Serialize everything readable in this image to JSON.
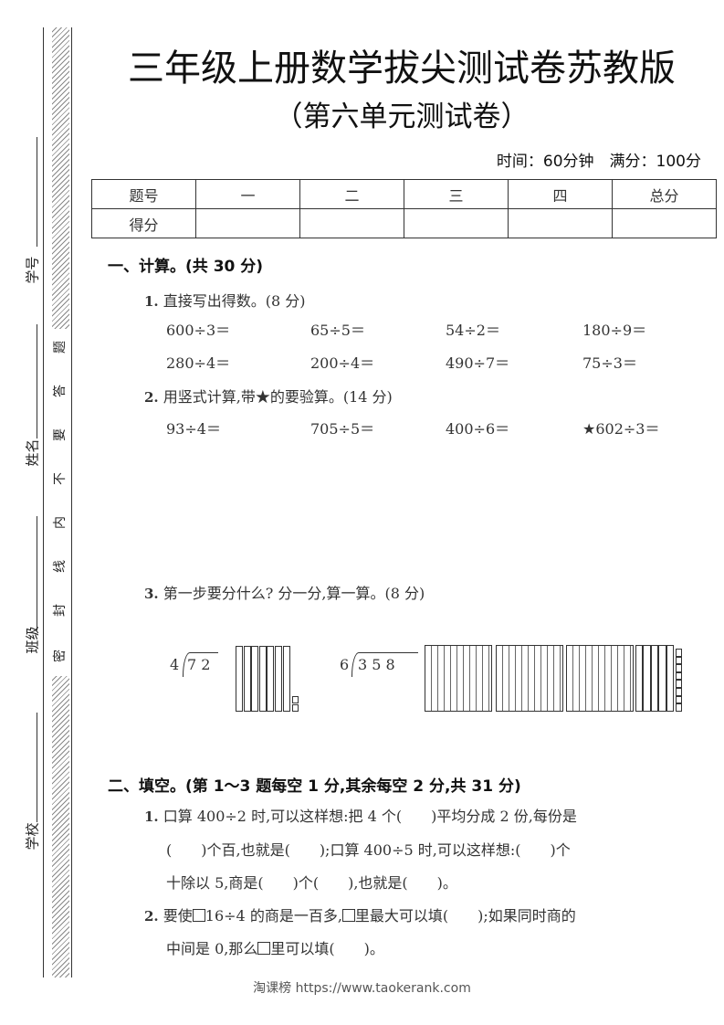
{
  "title": "三年级上册数学拔尖测试卷苏教版",
  "subtitle": "（第六单元测试卷）",
  "meta": "时间：60分钟　满分：100分",
  "sidebar": {
    "student_no": "学号",
    "name": "姓名",
    "class": "班级",
    "school": "学校",
    "seal": [
      "密",
      "封",
      "线",
      "内",
      "不",
      "要",
      "答",
      "题"
    ]
  },
  "score_table": {
    "headers": [
      "题号",
      "一",
      "二",
      "三",
      "四",
      "总分"
    ],
    "row_label": "得分"
  },
  "section1": {
    "heading": "一、计算。(共 30 分)",
    "q1": {
      "num": "1.",
      "text": "直接写出得数。(8 分)",
      "items": [
        "600÷3＝",
        "65÷5＝",
        "54÷2＝",
        "180÷9＝",
        "280÷4＝",
        "200÷4＝",
        "490÷7＝",
        "75÷3＝"
      ]
    },
    "q2": {
      "num": "2.",
      "text": "用竖式计算,带★的要验算。(14 分)",
      "items": [
        "93÷4＝",
        "705÷5＝",
        "400÷6＝",
        "★602÷3＝"
      ]
    },
    "q3": {
      "num": "3.",
      "text": "第一步要分什么? 分一分,算一算。(8 分)",
      "div1": {
        "divisor": "4",
        "dividend": "7 2",
        "tens": 7,
        "ones": 2
      },
      "div2": {
        "divisor": "6",
        "dividend": "3 5 8",
        "hundreds": 3,
        "tens": 5,
        "ones": 8
      }
    }
  },
  "section2": {
    "heading": "二、填空。(第 1～3 题每空 1 分,其余每空 2 分,共 31 分)",
    "q1": {
      "num": "1.",
      "lines": [
        "口算 400÷2 时,可以这样想:把 4 个(　　)平均分成 2 份,每份是",
        "(　　)个百,也就是(　　);口算 400÷5 时,可以这样想:(　　)个",
        "十除以 5,商是(　　)个(　　),也就是(　　)。"
      ]
    },
    "q2": {
      "num": "2.",
      "l1a": "要使",
      "l1b": "16÷4 的商是一百多,",
      "l1c": "里最大可以填(　　);如果同时商的",
      "l2a": "中间是 0,那么",
      "l2b": "里可以填(　　)。"
    }
  },
  "footer": "淘课榜 https://www.taokerank.com"
}
